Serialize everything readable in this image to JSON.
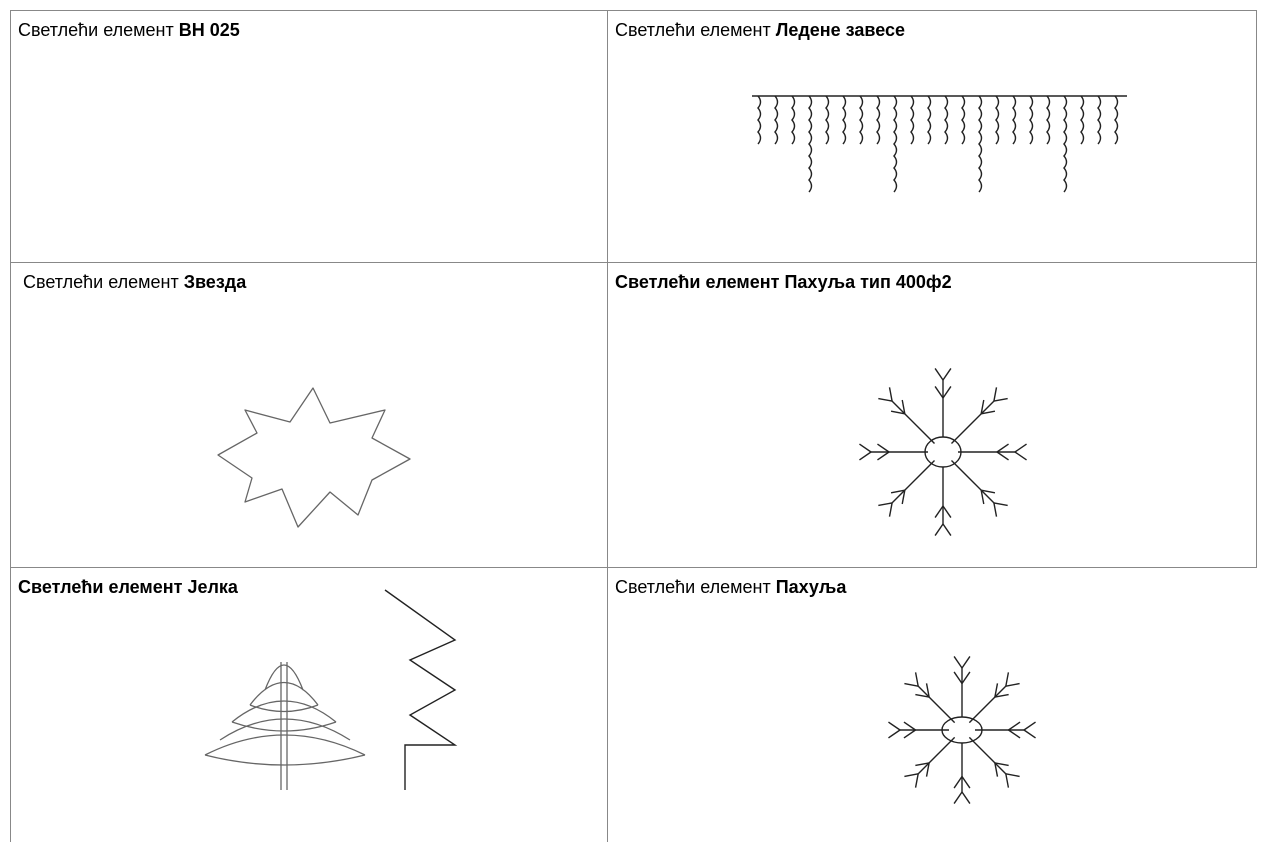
{
  "table": {
    "rows": [
      [
        {
          "runs": [
            {
              "text": "Светлећи елемент ",
              "bold": false
            },
            {
              "text": "BH 025",
              "bold": true
            }
          ]
        },
        {
          "runs": [
            {
              "text": "Светлећи елемент ",
              "bold": false
            },
            {
              "text": "Ледене завесе",
              "bold": true
            }
          ]
        }
      ],
      [
        {
          "runs": [
            {
              "text": " Светлећи елемент ",
              "bold": false
            },
            {
              "text": "Звезда",
              "bold": true
            }
          ]
        },
        {
          "runs": [
            {
              "text": "Светлећи елемент Пахуља тип 400ф2",
              "bold": true
            }
          ]
        }
      ],
      [
        {
          "runs": [
            {
              "text": "Светлећи елемент Јелка",
              "bold": true
            }
          ]
        },
        {
          "runs": [
            {
              "text": "Светлећи елемент ",
              "bold": false
            },
            {
              "text": "Пахуља",
              "bold": true
            }
          ]
        }
      ]
    ]
  }
}
